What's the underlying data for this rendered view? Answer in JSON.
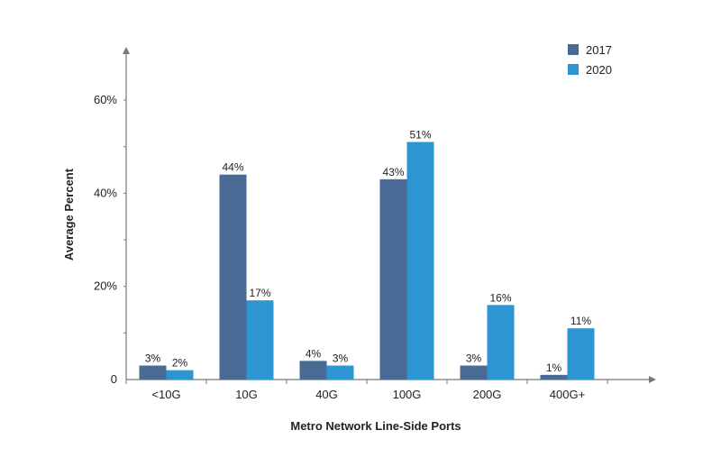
{
  "chart_data": {
    "type": "bar",
    "title": "",
    "xlabel": "Metro Network Line-Side Ports",
    "ylabel": "Average Percent",
    "categories": [
      "<10G",
      "10G",
      "40G",
      "100G",
      "200G",
      "400G+"
    ],
    "series": [
      {
        "name": "2017",
        "color": "#4a6a96",
        "values": [
          3,
          44,
          4,
          43,
          3,
          1
        ],
        "labels": [
          "3%",
          "44%",
          "4%",
          "43%",
          "3%",
          "1%"
        ]
      },
      {
        "name": "2020",
        "color": "#2e95d3",
        "values": [
          2,
          17,
          3,
          51,
          16,
          11
        ],
        "labels": [
          "2%",
          "17%",
          "3%",
          "51%",
          "16%",
          "11%"
        ]
      }
    ],
    "ylim": [
      0,
      60
    ],
    "yticks": [
      {
        "value": 0,
        "label": "0"
      },
      {
        "value": 20,
        "label": "20%"
      },
      {
        "value": 40,
        "label": "40%"
      },
      {
        "value": 60,
        "label": "60%"
      }
    ],
    "grid": false,
    "legend_position": "top-right",
    "axis_color": "#777777"
  }
}
